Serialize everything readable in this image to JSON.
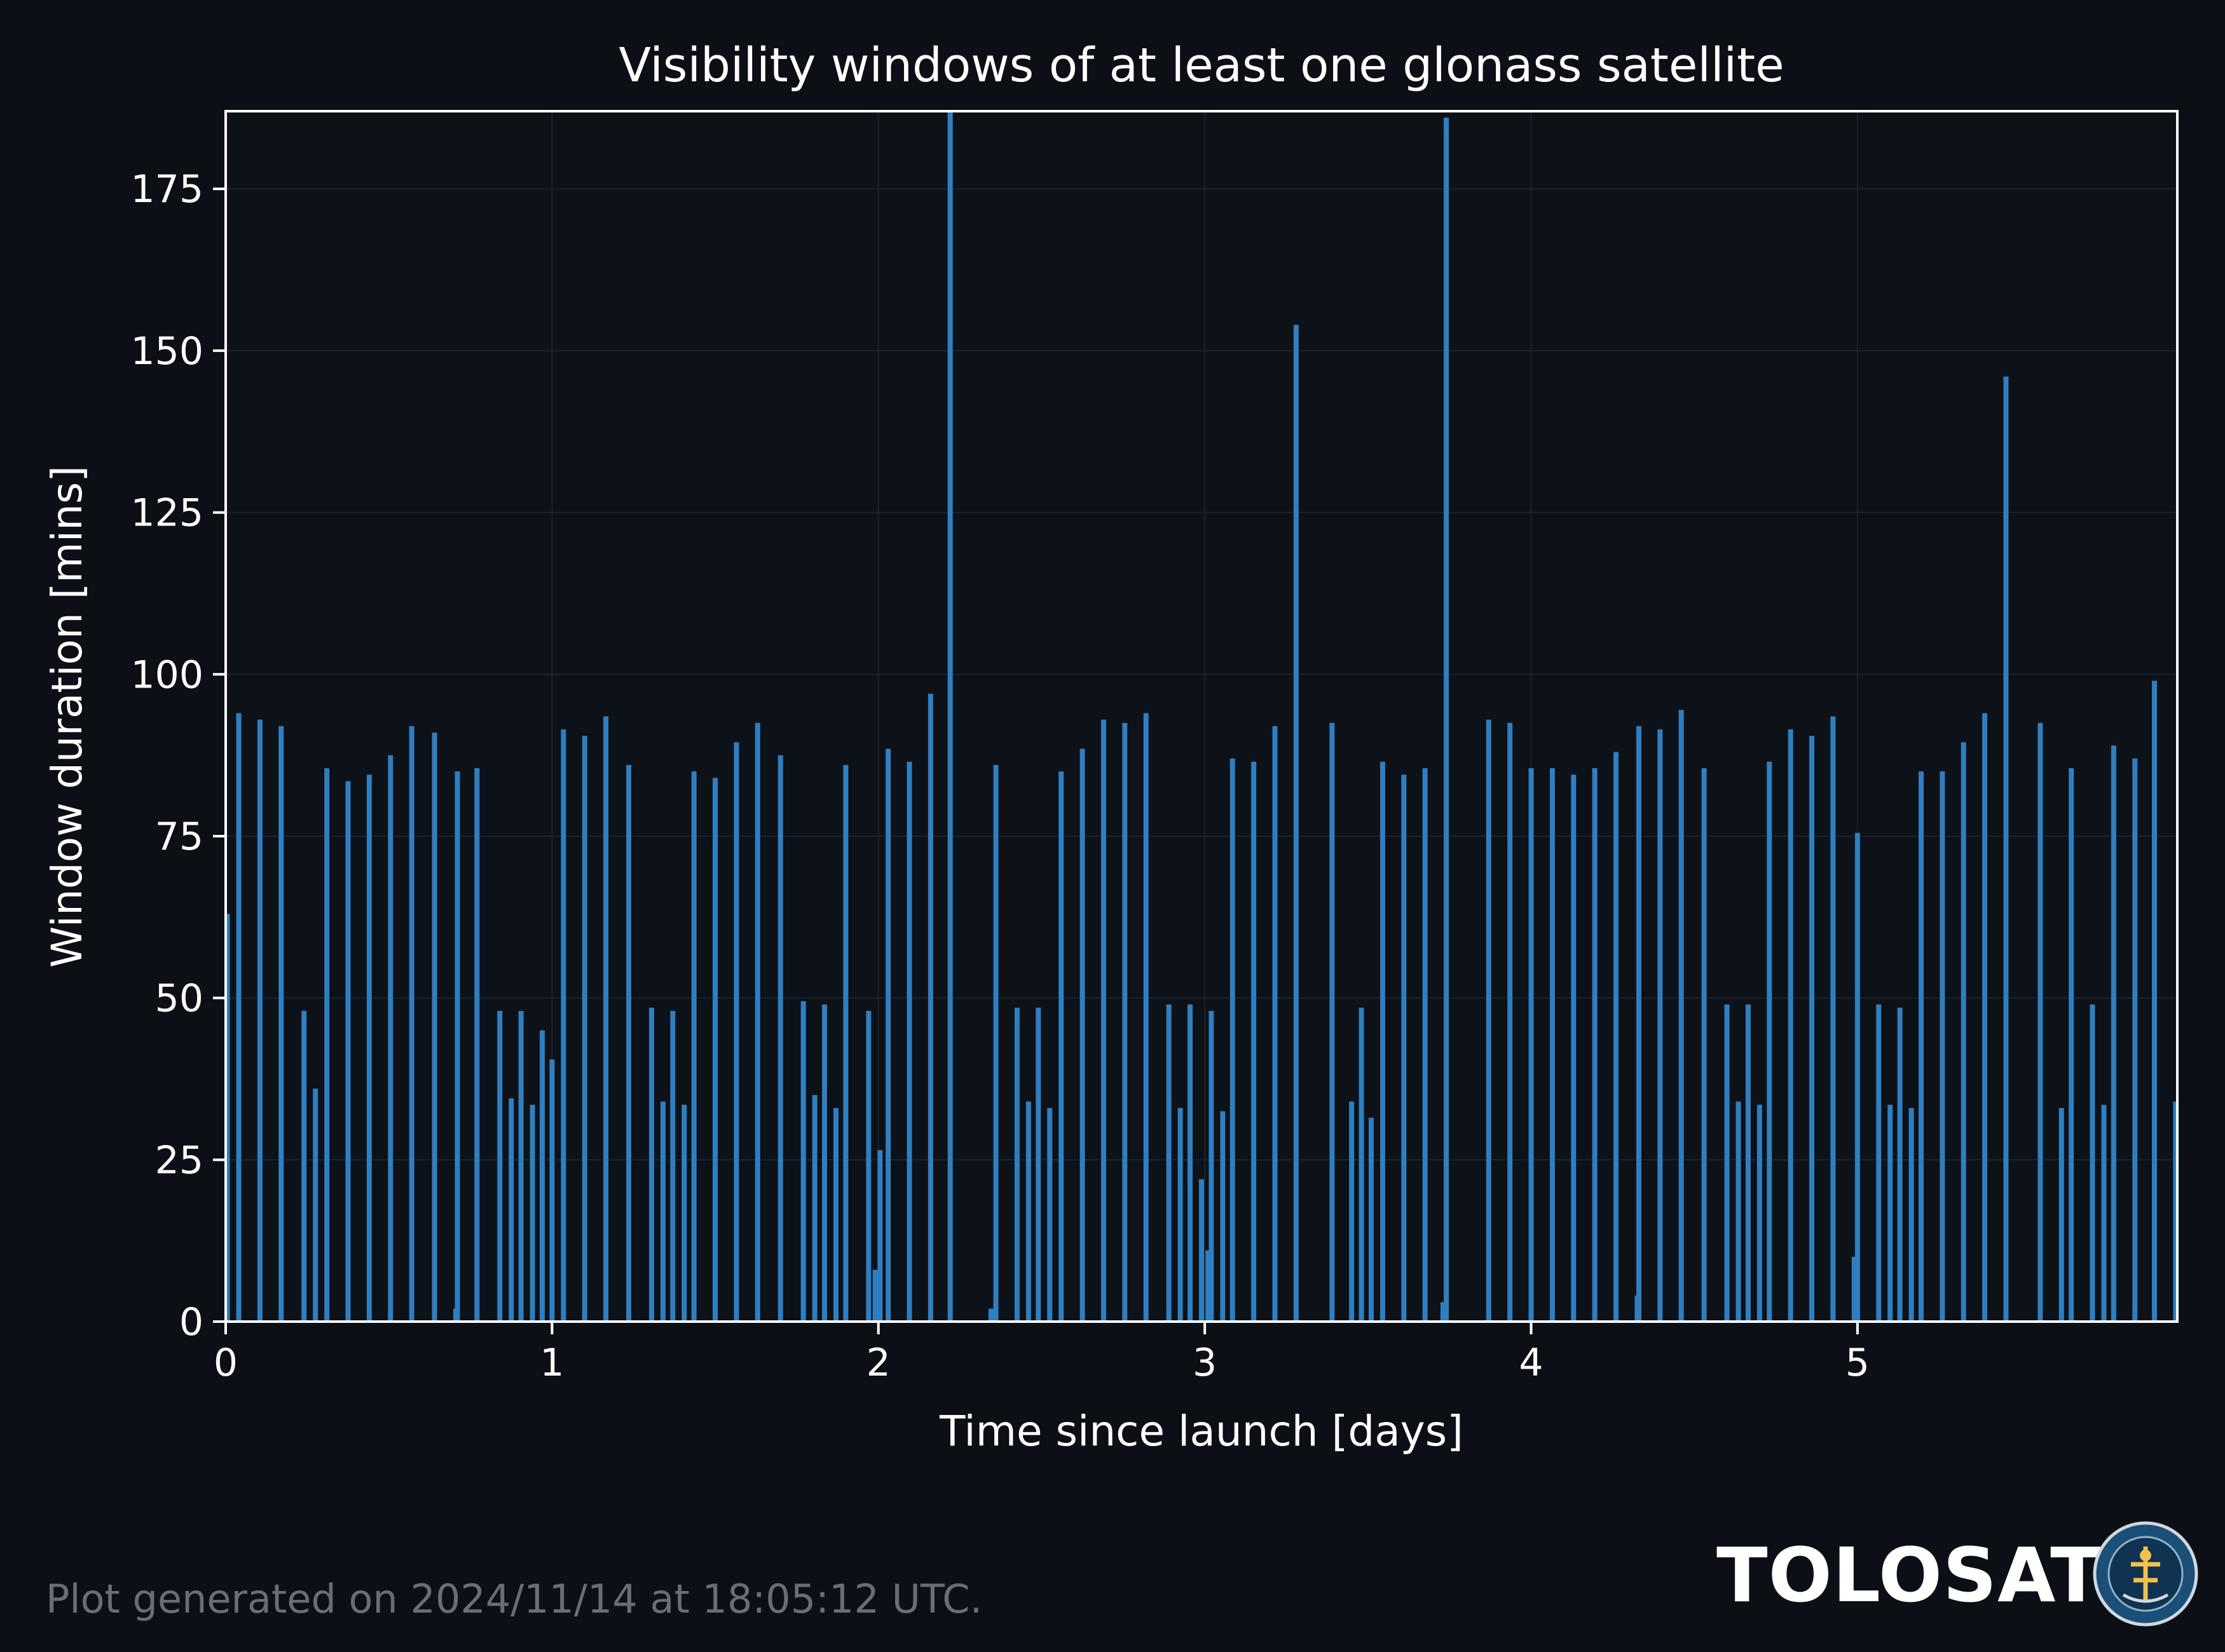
{
  "footer": {
    "generated": "Plot generated on 2024/11/14 at 18:05:12 UTC."
  },
  "brand": {
    "name": "TOLOSAT",
    "logo_icon": "tolosat-badge-icon"
  },
  "colors": {
    "background": "#0c1016",
    "plot_bg": "#0d1118",
    "bar": "#2f7fc0",
    "text": "#ffffff",
    "grid": "#1d232c"
  },
  "chart_data": {
    "type": "bar",
    "title": "Visibility windows of at least one glonass satellite",
    "xlabel": "Time since launch [days]",
    "ylabel": "Window duration [mins]",
    "xlim": [
      0,
      5.98
    ],
    "ylim": [
      0,
      187
    ],
    "xticks": [
      0,
      1,
      2,
      3,
      4,
      5
    ],
    "yticks": [
      0,
      25,
      50,
      75,
      100,
      125,
      150,
      175
    ],
    "grid": true,
    "bars": [
      {
        "x": 0.005,
        "y": 63
      },
      {
        "x": 0.04,
        "y": 94
      },
      {
        "x": 0.105,
        "y": 93
      },
      {
        "x": 0.17,
        "y": 92
      },
      {
        "x": 0.24,
        "y": 48
      },
      {
        "x": 0.275,
        "y": 36
      },
      {
        "x": 0.31,
        "y": 85.5
      },
      {
        "x": 0.375,
        "y": 83.5
      },
      {
        "x": 0.44,
        "y": 84.5
      },
      {
        "x": 0.505,
        "y": 87.5
      },
      {
        "x": 0.57,
        "y": 92
      },
      {
        "x": 0.64,
        "y": 91
      },
      {
        "x": 0.705,
        "y": 2
      },
      {
        "x": 0.71,
        "y": 85
      },
      {
        "x": 0.77,
        "y": 85.5
      },
      {
        "x": 0.84,
        "y": 48
      },
      {
        "x": 0.875,
        "y": 34.5
      },
      {
        "x": 0.905,
        "y": 48
      },
      {
        "x": 0.94,
        "y": 33.5
      },
      {
        "x": 0.97,
        "y": 45
      },
      {
        "x": 1.0,
        "y": 40.5
      },
      {
        "x": 1.035,
        "y": 91.5
      },
      {
        "x": 1.1,
        "y": 90.5
      },
      {
        "x": 1.165,
        "y": 93.5
      },
      {
        "x": 1.235,
        "y": 86
      },
      {
        "x": 1.305,
        "y": 48.5
      },
      {
        "x": 1.34,
        "y": 34
      },
      {
        "x": 1.37,
        "y": 48
      },
      {
        "x": 1.405,
        "y": 33.5
      },
      {
        "x": 1.435,
        "y": 85
      },
      {
        "x": 1.5,
        "y": 84
      },
      {
        "x": 1.565,
        "y": 89.5
      },
      {
        "x": 1.63,
        "y": 92.5
      },
      {
        "x": 1.7,
        "y": 87.5
      },
      {
        "x": 1.77,
        "y": 49.5
      },
      {
        "x": 1.805,
        "y": 35
      },
      {
        "x": 1.835,
        "y": 49
      },
      {
        "x": 1.87,
        "y": 33
      },
      {
        "x": 1.9,
        "y": 86
      },
      {
        "x": 1.97,
        "y": 48
      },
      {
        "x": 1.99,
        "y": 8
      },
      {
        "x": 2.005,
        "y": 26.5
      },
      {
        "x": 2.03,
        "y": 88.5
      },
      {
        "x": 2.095,
        "y": 86.5
      },
      {
        "x": 2.16,
        "y": 97
      },
      {
        "x": 2.22,
        "y": 187
      },
      {
        "x": 2.345,
        "y": 2
      },
      {
        "x": 2.36,
        "y": 86
      },
      {
        "x": 2.425,
        "y": 48.5
      },
      {
        "x": 2.46,
        "y": 34
      },
      {
        "x": 2.49,
        "y": 48.5
      },
      {
        "x": 2.525,
        "y": 33
      },
      {
        "x": 2.56,
        "y": 85
      },
      {
        "x": 2.625,
        "y": 88.5
      },
      {
        "x": 2.69,
        "y": 93
      },
      {
        "x": 2.755,
        "y": 92.5
      },
      {
        "x": 2.82,
        "y": 94
      },
      {
        "x": 2.89,
        "y": 49
      },
      {
        "x": 2.925,
        "y": 33
      },
      {
        "x": 2.955,
        "y": 49
      },
      {
        "x": 2.99,
        "y": 22
      },
      {
        "x": 3.01,
        "y": 11
      },
      {
        "x": 3.02,
        "y": 48
      },
      {
        "x": 3.055,
        "y": 32.5
      },
      {
        "x": 3.085,
        "y": 87
      },
      {
        "x": 3.15,
        "y": 86.5
      },
      {
        "x": 3.215,
        "y": 92
      },
      {
        "x": 3.28,
        "y": 154
      },
      {
        "x": 3.39,
        "y": 92.5
      },
      {
        "x": 3.45,
        "y": 34
      },
      {
        "x": 3.48,
        "y": 48.5
      },
      {
        "x": 3.51,
        "y": 31.5
      },
      {
        "x": 3.545,
        "y": 86.5
      },
      {
        "x": 3.61,
        "y": 84.5
      },
      {
        "x": 3.675,
        "y": 85.5
      },
      {
        "x": 3.73,
        "y": 3
      },
      {
        "x": 3.74,
        "y": 186
      },
      {
        "x": 3.87,
        "y": 93
      },
      {
        "x": 3.935,
        "y": 92.5
      },
      {
        "x": 4.0,
        "y": 85.5
      },
      {
        "x": 4.065,
        "y": 85.5
      },
      {
        "x": 4.13,
        "y": 84.5
      },
      {
        "x": 4.195,
        "y": 85.5
      },
      {
        "x": 4.26,
        "y": 88
      },
      {
        "x": 4.325,
        "y": 4
      },
      {
        "x": 4.33,
        "y": 92
      },
      {
        "x": 4.395,
        "y": 91.5
      },
      {
        "x": 4.46,
        "y": 94.5
      },
      {
        "x": 4.53,
        "y": 85.5
      },
      {
        "x": 4.6,
        "y": 49
      },
      {
        "x": 4.635,
        "y": 34
      },
      {
        "x": 4.665,
        "y": 49
      },
      {
        "x": 4.7,
        "y": 33.5
      },
      {
        "x": 4.73,
        "y": 86.5
      },
      {
        "x": 4.795,
        "y": 91.5
      },
      {
        "x": 4.86,
        "y": 90.5
      },
      {
        "x": 4.925,
        "y": 93.5
      },
      {
        "x": 4.99,
        "y": 10
      },
      {
        "x": 5.0,
        "y": 75.5
      },
      {
        "x": 5.065,
        "y": 49
      },
      {
        "x": 5.1,
        "y": 33.5
      },
      {
        "x": 5.13,
        "y": 48.5
      },
      {
        "x": 5.165,
        "y": 33
      },
      {
        "x": 5.195,
        "y": 85
      },
      {
        "x": 5.26,
        "y": 85
      },
      {
        "x": 5.325,
        "y": 89.5
      },
      {
        "x": 5.39,
        "y": 94
      },
      {
        "x": 5.455,
        "y": 146
      },
      {
        "x": 5.56,
        "y": 92.5
      },
      {
        "x": 5.625,
        "y": 33
      },
      {
        "x": 5.655,
        "y": 85.5
      },
      {
        "x": 5.72,
        "y": 49
      },
      {
        "x": 5.755,
        "y": 33.5
      },
      {
        "x": 5.785,
        "y": 89
      },
      {
        "x": 5.85,
        "y": 87
      },
      {
        "x": 5.91,
        "y": 99
      },
      {
        "x": 5.975,
        "y": 34
      }
    ]
  }
}
